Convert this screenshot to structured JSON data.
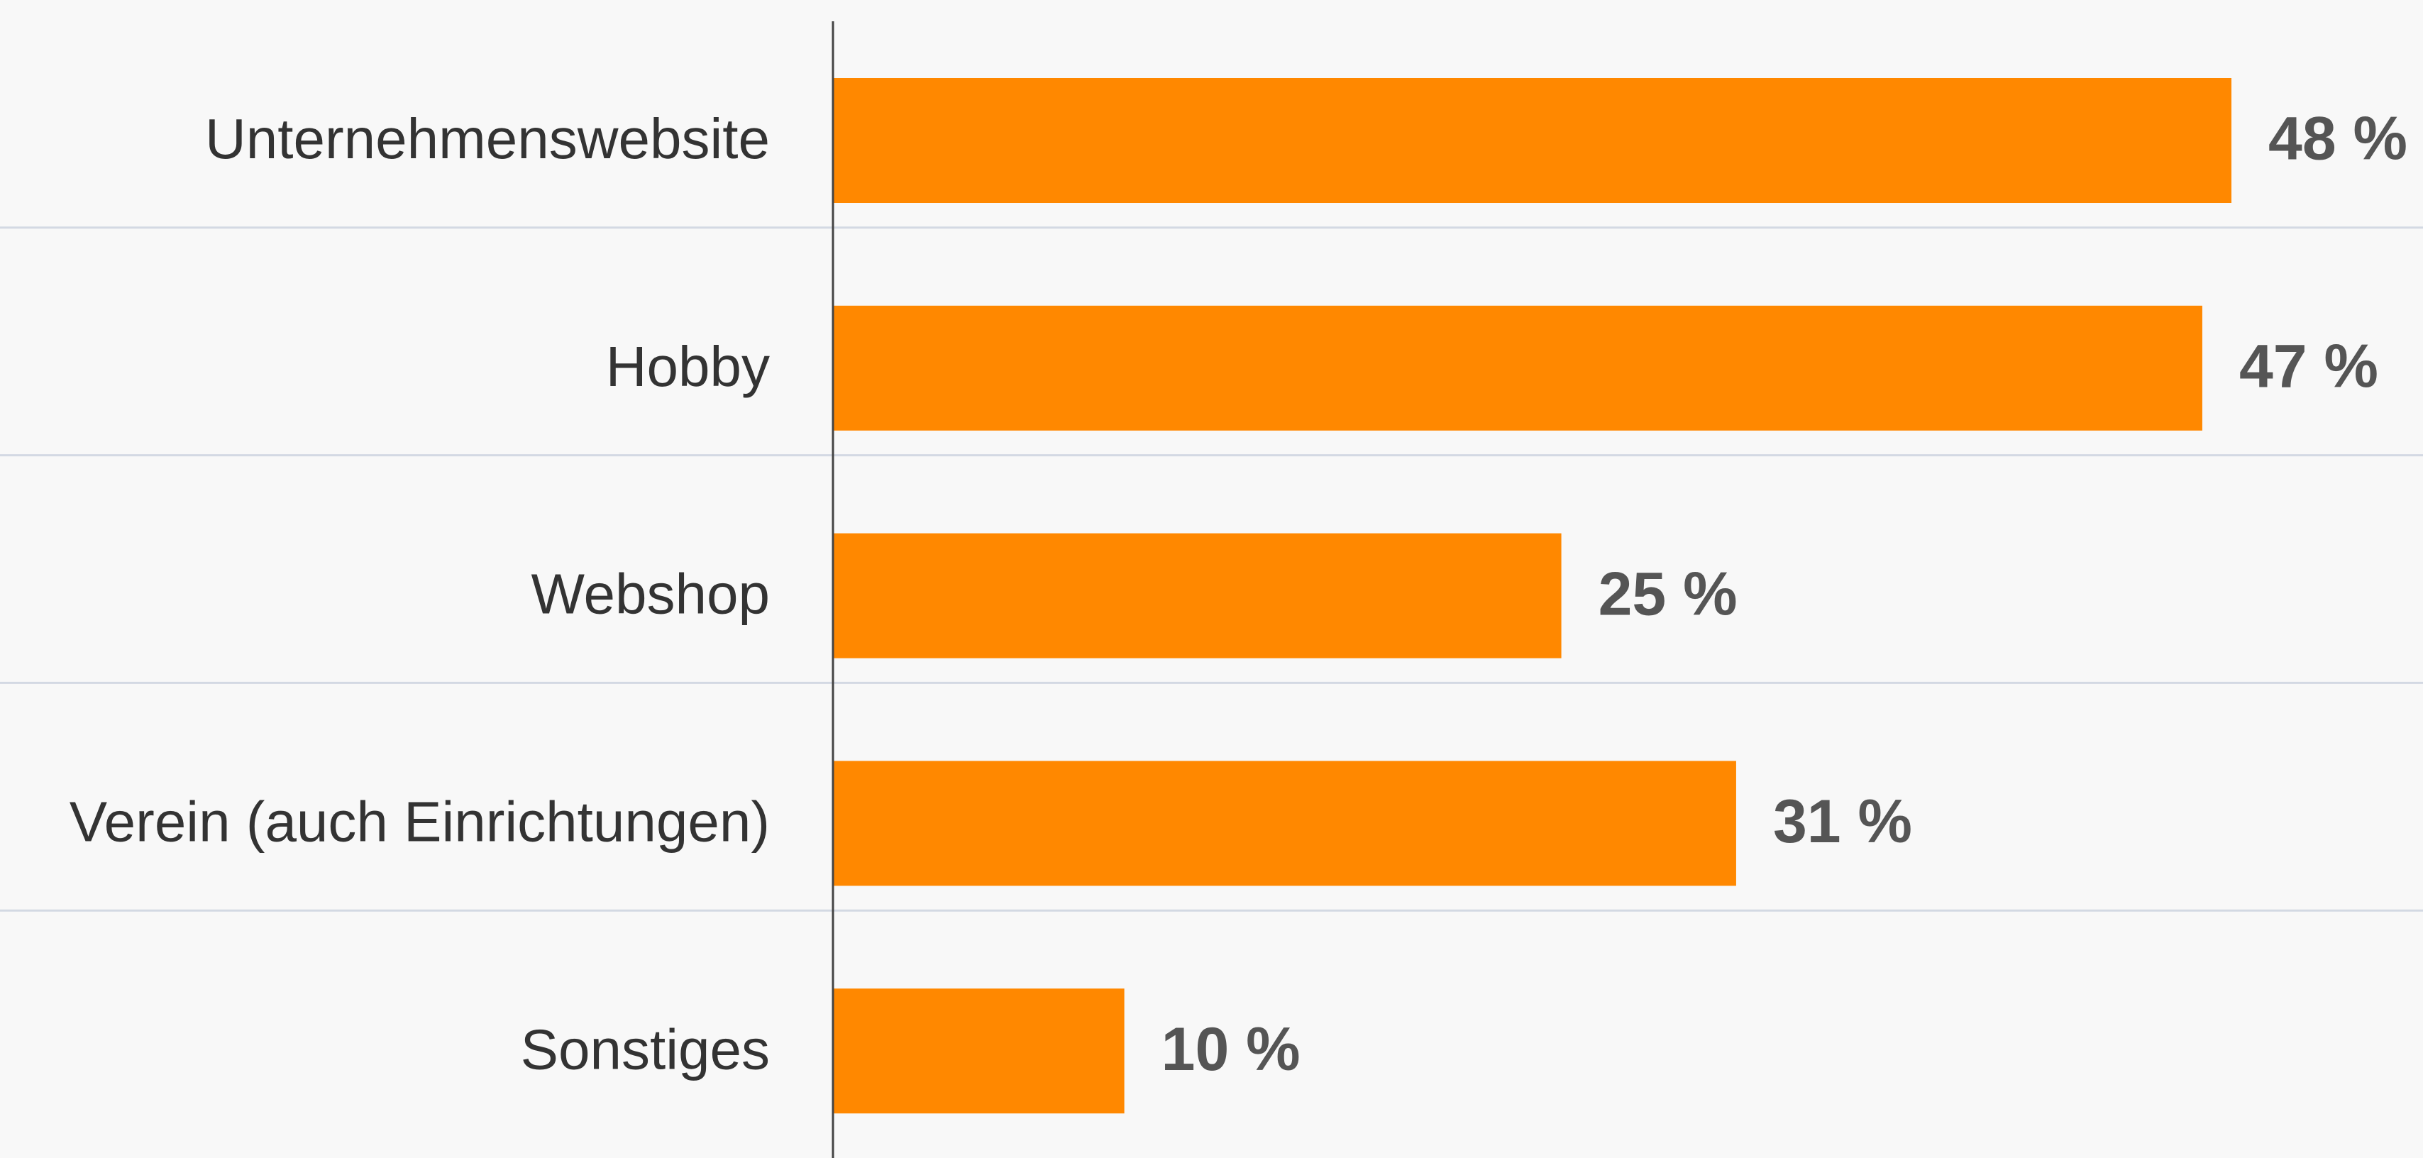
{
  "chart_data": {
    "type": "bar",
    "orientation": "horizontal",
    "categories": [
      "Unternehmenswebsite",
      "Hobby",
      "Webshop",
      "Verein (auch Einrichtungen)",
      "Sonstiges"
    ],
    "values": [
      48,
      47,
      25,
      31,
      10
    ],
    "value_labels": [
      "48 %",
      "47 %",
      "25 %",
      "31 %",
      "10 %"
    ],
    "color": "#ff8800"
  }
}
